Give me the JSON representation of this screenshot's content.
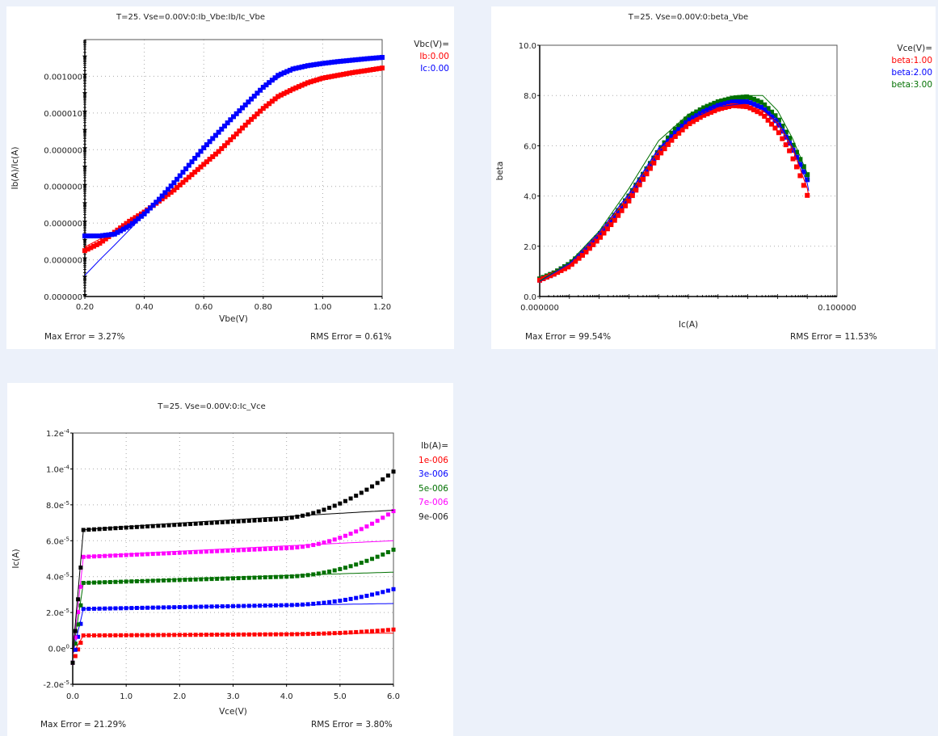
{
  "chart_data": [
    {
      "id": "ib_ic_vbe",
      "type": "scatter",
      "title": "T=25.  Vse=0.00V:0:Ib_Vbe:Ib/Ic_Vbe",
      "xlabel": "Vbe(V)",
      "ylabel": "Ib(A)/Ic(A)",
      "xscale": "linear",
      "yscale": "log",
      "xlim": [
        0.2,
        1.2
      ],
      "ylim_log10": [
        -15,
        -1
      ],
      "xticks": [
        0.2,
        0.4,
        0.6,
        0.8,
        1.0,
        1.2
      ],
      "xtick_labels": [
        "0.20",
        "0.40",
        "0.60",
        "0.80",
        "1.00",
        "1.20"
      ],
      "yticks_log10": [
        -3,
        -5,
        -7,
        -9,
        -11,
        -13,
        -15
      ],
      "ytick_labels": [
        "0.001000",
        "0.000010",
        "0.000000",
        "0.000000",
        "0.000000",
        "0.000000",
        "0.000000"
      ],
      "grid": true,
      "legend": {
        "placement": "top-right-outside",
        "header": "Vbc(V)=",
        "entries": [
          {
            "label": "Ib:0.00",
            "color": "#ff0000"
          },
          {
            "label": "Ic:0.00",
            "color": "#0000ff"
          }
        ]
      },
      "series": [
        {
          "name": "Ib:0.00",
          "color": "#ff0000",
          "kind": "measured",
          "x": [
            0.2,
            0.25,
            0.3,
            0.35,
            0.4,
            0.45,
            0.5,
            0.55,
            0.6,
            0.65,
            0.7,
            0.75,
            0.8,
            0.85,
            0.9,
            0.95,
            1.0,
            1.05,
            1.1,
            1.15,
            1.2
          ],
          "log10_y": [
            -12.5,
            -12.1,
            -11.5,
            -10.9,
            -10.4,
            -9.8,
            -9.2,
            -8.5,
            -7.8,
            -7.1,
            -6.3,
            -5.5,
            -4.75,
            -4.1,
            -3.7,
            -3.35,
            -3.1,
            -2.95,
            -2.8,
            -2.68,
            -2.55
          ]
        },
        {
          "name": "Ib:0.00 fit",
          "color": "#ff0000",
          "kind": "simulated",
          "x": [
            0.2,
            0.3,
            0.4,
            0.5,
            0.6,
            0.7,
            0.8,
            0.9,
            1.0,
            1.1,
            1.2
          ],
          "log10_y": [
            -12.3,
            -11.45,
            -10.4,
            -9.2,
            -7.8,
            -6.3,
            -4.75,
            -3.7,
            -3.1,
            -2.8,
            -2.55
          ]
        },
        {
          "name": "Ic:0.00",
          "color": "#0000ff",
          "kind": "measured",
          "x": [
            0.2,
            0.25,
            0.3,
            0.35,
            0.4,
            0.45,
            0.5,
            0.55,
            0.6,
            0.65,
            0.7,
            0.75,
            0.8,
            0.85,
            0.9,
            0.95,
            1.0,
            1.05,
            1.1,
            1.15,
            1.2
          ],
          "log10_y": [
            -11.7,
            -11.7,
            -11.6,
            -11.15,
            -10.5,
            -9.7,
            -8.8,
            -7.85,
            -6.9,
            -6.05,
            -5.2,
            -4.4,
            -3.6,
            -2.95,
            -2.6,
            -2.42,
            -2.3,
            -2.2,
            -2.12,
            -2.04,
            -1.97
          ]
        },
        {
          "name": "Ic:0.00 fit",
          "color": "#0000ff",
          "kind": "simulated",
          "x": [
            0.2,
            0.25,
            0.3,
            0.36,
            0.4,
            0.5,
            0.6,
            0.7,
            0.8,
            0.9,
            1.0,
            1.1,
            1.2
          ],
          "log10_y": [
            -13.85,
            -13.0,
            -12.2,
            -11.2,
            -10.5,
            -8.8,
            -6.9,
            -5.2,
            -3.6,
            -2.6,
            -2.3,
            -2.12,
            -1.97
          ]
        }
      ],
      "max_error": "Max Error = 3.27%",
      "rms_error": "RMS Error = 0.61%"
    },
    {
      "id": "beta_vbe",
      "type": "scatter",
      "title": "T=25.  Vse=0.00V:0:beta_Vbe",
      "xlabel": "Ic(A)",
      "ylabel": "beta",
      "xscale": "log",
      "yscale": "linear",
      "xlim_log10": [
        -11,
        -1
      ],
      "ylim": [
        0,
        10
      ],
      "xtick_labels": [
        "0.000000",
        "0.100000"
      ],
      "yticks": [
        0,
        2,
        4,
        6,
        8,
        10
      ],
      "ytick_labels": [
        "0.0",
        "2.0",
        "4.0",
        "6.0",
        "8.0",
        "10.0"
      ],
      "grid": true,
      "legend": {
        "placement": "top-right-outside",
        "header": "Vce(V)=",
        "entries": [
          {
            "label": "beta:1.00",
            "color": "#ff0000"
          },
          {
            "label": "beta:2.00",
            "color": "#0000ff"
          },
          {
            "label": "beta:3.00",
            "color": "#007000"
          }
        ]
      },
      "series": [
        {
          "name": "beta:1.00",
          "color": "#ff0000",
          "kind": "measured",
          "log10_x": [
            -11,
            -10.5,
            -10,
            -9.5,
            -9,
            -8.5,
            -8,
            -7.5,
            -7,
            -6.5,
            -6,
            -5.5,
            -5,
            -4.5,
            -4,
            -3.5,
            -3,
            -2.6,
            -2.3,
            -2.05,
            -1.95
          ],
          "y": [
            0.65,
            0.9,
            1.2,
            1.7,
            2.3,
            3.0,
            3.8,
            4.7,
            5.6,
            6.3,
            6.85,
            7.2,
            7.45,
            7.6,
            7.55,
            7.25,
            6.6,
            5.8,
            5.0,
            4.2,
            3.85
          ]
        },
        {
          "name": "beta:2.00",
          "color": "#0000ff",
          "kind": "measured",
          "log10_x": [
            -11,
            -10.5,
            -10,
            -9.5,
            -9,
            -8.5,
            -8,
            -7.5,
            -7,
            -6.5,
            -6,
            -5.5,
            -5,
            -4.5,
            -4,
            -3.5,
            -3,
            -2.6,
            -2.3,
            -2.05,
            -1.95
          ],
          "y": [
            0.65,
            0.9,
            1.25,
            1.75,
            2.4,
            3.1,
            3.9,
            4.8,
            5.7,
            6.45,
            7.0,
            7.35,
            7.6,
            7.75,
            7.75,
            7.5,
            6.9,
            6.1,
            5.4,
            4.8,
            4.5
          ]
        },
        {
          "name": "beta:3.00",
          "color": "#007000",
          "kind": "measured",
          "log10_x": [
            -11,
            -10.5,
            -10,
            -9.5,
            -9,
            -8.5,
            -8,
            -7.5,
            -7,
            -6.5,
            -6,
            -5.5,
            -5,
            -4.5,
            -4,
            -3.5,
            -3,
            -2.6,
            -2.3,
            -2.05,
            -1.95
          ],
          "y": [
            0.7,
            0.95,
            1.3,
            1.8,
            2.45,
            3.2,
            4.0,
            4.9,
            5.8,
            6.6,
            7.15,
            7.5,
            7.75,
            7.9,
            7.95,
            7.7,
            7.1,
            6.3,
            5.6,
            5.0,
            4.7
          ]
        },
        {
          "name": "beta:1.00 fit",
          "color": "#ff0000",
          "kind": "simulated",
          "log10_x": [
            -11,
            -10,
            -9,
            -8,
            -7,
            -6,
            -5,
            -4,
            -3.5,
            -3,
            -2.5,
            -2,
            -1.95
          ],
          "y": [
            0.6,
            1.3,
            2.5,
            4.0,
            5.8,
            6.9,
            7.45,
            7.6,
            7.4,
            6.9,
            5.9,
            4.3,
            4.0
          ]
        },
        {
          "name": "beta:2.00 fit",
          "color": "#0000ff",
          "kind": "simulated",
          "log10_x": [
            -11,
            -10,
            -9,
            -8,
            -7,
            -6,
            -5,
            -4,
            -3.5,
            -3,
            -2.5,
            -2,
            -1.95
          ],
          "y": [
            0.6,
            1.3,
            2.55,
            4.1,
            5.9,
            7.0,
            7.55,
            7.7,
            7.55,
            7.05,
            6.0,
            4.5,
            4.2
          ]
        },
        {
          "name": "beta:3.00 fit",
          "color": "#007000",
          "kind": "simulated",
          "log10_x": [
            -11,
            -10,
            -9,
            -8,
            -7,
            -6,
            -5,
            -4,
            -3.5,
            -3,
            -2.5,
            -2,
            -1.95
          ],
          "y": [
            0.62,
            1.35,
            2.6,
            4.3,
            6.2,
            7.25,
            7.8,
            8.0,
            8.0,
            7.4,
            6.3,
            4.9,
            4.6
          ]
        }
      ],
      "max_error": "Max Error = 99.54%",
      "rms_error": "RMS Error = 11.53%"
    },
    {
      "id": "ic_vce",
      "type": "scatter",
      "title": "T=25.  Vse=0.00V:0:Ic_Vce",
      "xlabel": "Vce(V)",
      "ylabel": "Ic(A)",
      "xscale": "linear",
      "yscale": "linear",
      "xlim": [
        0,
        6
      ],
      "ylim": [
        -2e-05,
        0.00012
      ],
      "xticks": [
        0,
        1,
        2,
        3,
        4,
        5,
        6
      ],
      "xtick_labels": [
        "0.0",
        "1.0",
        "2.0",
        "3.0",
        "4.0",
        "5.0",
        "6.0"
      ],
      "yticks": [
        -2e-05,
        0,
        2e-05,
        4e-05,
        6e-05,
        8e-05,
        0.0001,
        0.00012
      ],
      "ytick_labels": [
        "-2.0e-5",
        "0.0e0",
        "2.0e-5",
        "4.0e-5",
        "6.0e-5",
        "8.0e-5",
        "1.0e-4",
        "1.2e-4"
      ],
      "grid": true,
      "legend": {
        "placement": "top-right-outside",
        "header": "Ib(A)=",
        "entries": [
          {
            "label": "1e-006",
            "color": "#ff0000"
          },
          {
            "label": "3e-006",
            "color": "#0000ff"
          },
          {
            "label": "5e-006",
            "color": "#007000"
          },
          {
            "label": "7e-006",
            "color": "#ff00ff"
          },
          {
            "label": "9e-006",
            "color": "#000000"
          }
        ]
      },
      "series": [
        {
          "name": "1e-006",
          "color": "#ff0000",
          "sat": 7.2e-06,
          "end_measured": 1.05e-05,
          "end_fit": 8.5e-06,
          "upturn_start": 4.0
        },
        {
          "name": "3e-006",
          "color": "#0000ff",
          "sat": 2.2e-05,
          "end_measured": 3.3e-05,
          "end_fit": 2.5e-05,
          "upturn_start": 4.0
        },
        {
          "name": "5e-006",
          "color": "#007000",
          "sat": 3.65e-05,
          "end_measured": 5.5e-05,
          "end_fit": 4.25e-05,
          "upturn_start": 4.0
        },
        {
          "name": "7e-006",
          "color": "#ff00ff",
          "sat": 5.1e-05,
          "end_measured": 7.65e-05,
          "end_fit": 6e-05,
          "upturn_start": 4.0
        },
        {
          "name": "9e-006",
          "color": "#000000",
          "sat": 6.6e-05,
          "end_measured": 9.85e-05,
          "end_fit": 7.7e-05,
          "upturn_start": 3.8
        }
      ],
      "max_error": "Max Error = 21.29%",
      "rms_error": "RMS Error = 3.80%"
    }
  ]
}
